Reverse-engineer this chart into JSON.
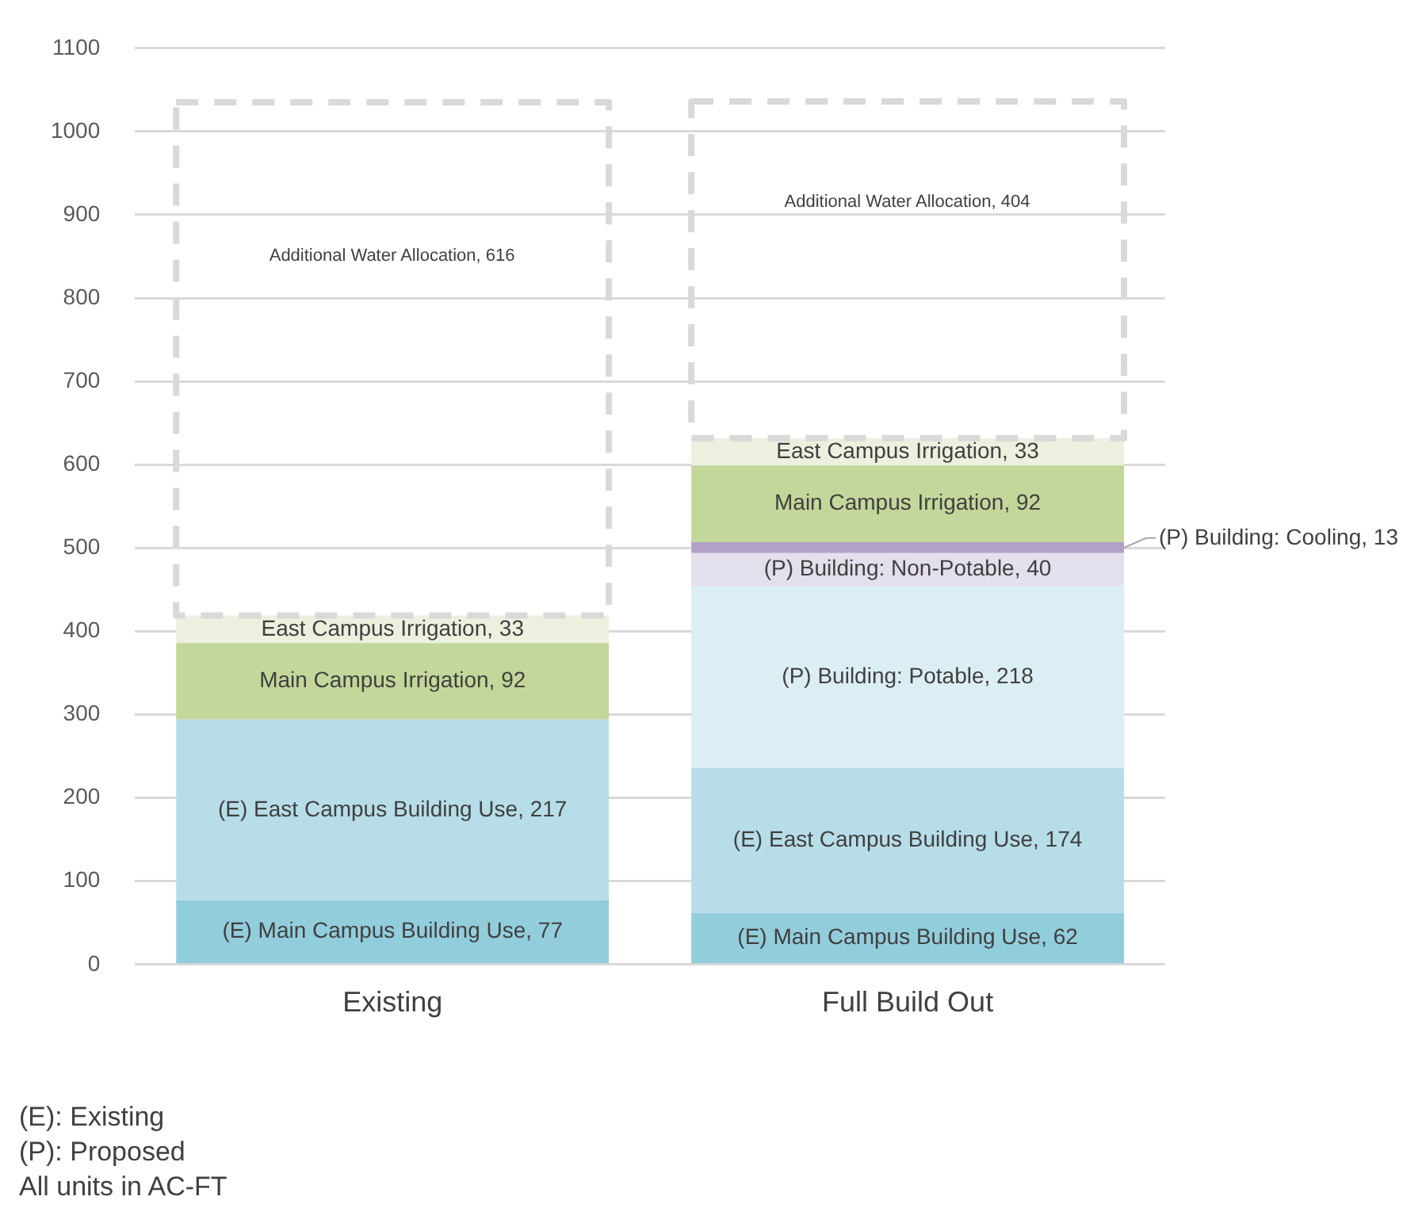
{
  "chart_data": {
    "type": "bar",
    "stacked": true,
    "categories": [
      "Existing",
      "Full Build Out"
    ],
    "ylim": [
      0,
      1100
    ],
    "yticks": [
      0,
      100,
      200,
      300,
      400,
      500,
      600,
      700,
      800,
      900,
      1000,
      1100
    ],
    "grid": "y",
    "legend": false,
    "series": [
      {
        "color": "#92cddc",
        "values": [
          77,
          62
        ],
        "value_labels": [
          "(E) Main Campus Building Use, 77",
          "(E) Main Campus Building Use, 62"
        ]
      },
      {
        "color": "#b7dde8",
        "values": [
          217,
          174
        ],
        "value_labels": [
          "(E) East Campus Building Use, 217",
          "(E) East Campus Building Use, 174"
        ]
      },
      {
        "color": "#dbeef3",
        "values": [
          null,
          218
        ],
        "value_labels": [
          null,
          "(P) Building: Potable, 218"
        ]
      },
      {
        "color": "#e4dfec",
        "values": [
          null,
          40
        ],
        "value_labels": [
          null,
          "(P) Building: Non-Potable, 40"
        ]
      },
      {
        "color": "#b1a0c7",
        "values": [
          null,
          13
        ],
        "value_labels": [
          null,
          "(P) Building: Cooling, 13"
        ]
      },
      {
        "color": "#c4d79b",
        "values": [
          92,
          92
        ],
        "value_labels": [
          "Main Campus Irrigation, 92",
          "Main Campus Irrigation, 92"
        ]
      },
      {
        "color": "#ebf1de",
        "values": [
          33,
          33
        ],
        "value_labels": [
          "East Campus Irrigation, 33",
          "East Campus Irrigation, 33"
        ]
      },
      {
        "color": "#d9d9d9",
        "line_style": "dashed",
        "values": [
          616,
          404
        ],
        "value_labels": [
          "Additional Water Allocation, 616",
          "Additional Water Allocation, 404"
        ]
      }
    ],
    "annotations": [
      "(E): Existing",
      "(P): Proposed",
      "All units in AC-FT"
    ]
  }
}
